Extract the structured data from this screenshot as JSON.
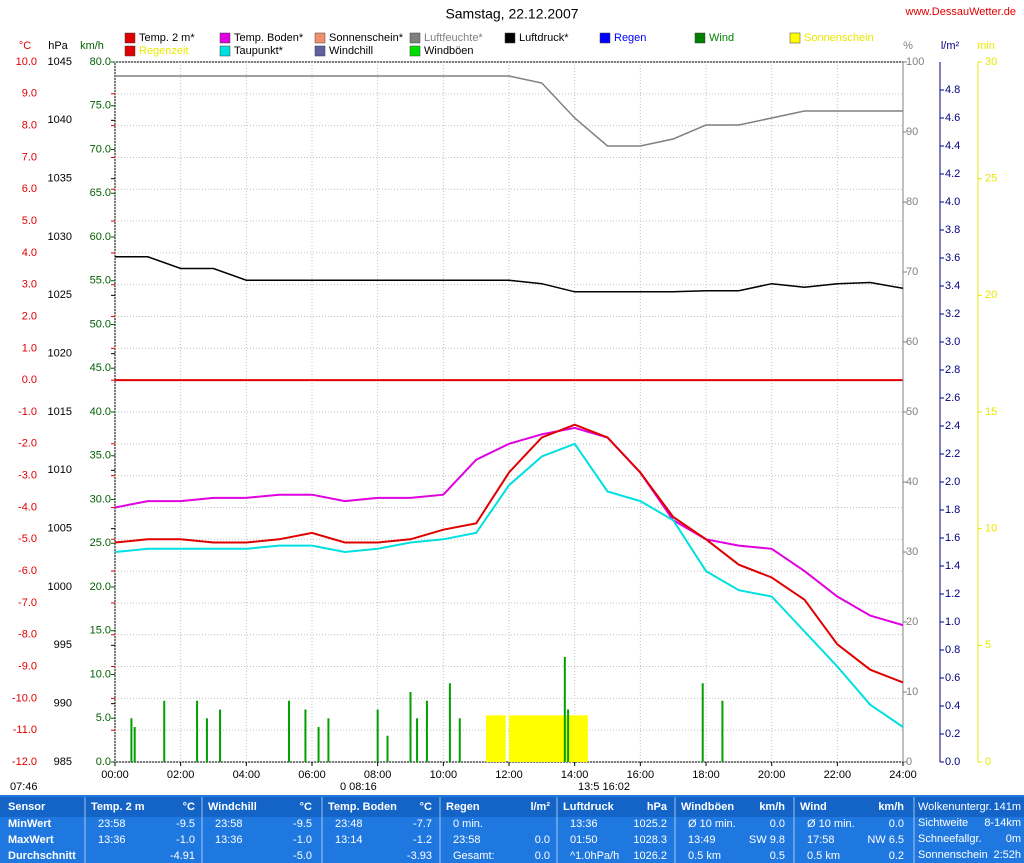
{
  "chart_data": {
    "type": "line",
    "title": "Samstag, 22.12.2007",
    "site": "www.DessauWetter.de",
    "legend": [
      {
        "name": "Temp. 2 m*",
        "color": "#e00000"
      },
      {
        "name": "Temp. Boden*",
        "color": "#e000e0"
      },
      {
        "name": "Sonnenschein*",
        "color": "#f0906a"
      },
      {
        "name": "Luftfeuchte*",
        "color": "#808080",
        "label_color": "#808080"
      },
      {
        "name": "Luftdruck*",
        "color": "#000000"
      },
      {
        "name": "Regen",
        "color": "#0000ff",
        "label_color": "#0000ff"
      },
      {
        "name": "Wind",
        "color": "#008000",
        "label_color": "#008000"
      },
      {
        "name": "Sonnenschein",
        "color": "#ffff00",
        "label_color": "#e8e800"
      },
      {
        "name": "Regenzeit",
        "color": "#e00000",
        "label_color": "#e8e800"
      },
      {
        "name": "Taupunkt*",
        "color": "#00e0e0"
      },
      {
        "name": "Windchill",
        "color": "#6060a0"
      },
      {
        "name": "Windböen",
        "color": "#00e000"
      }
    ],
    "xlim": [
      0,
      24
    ],
    "xticks": [
      {
        "value": 0,
        "label": "00:00"
      },
      {
        "value": 2,
        "label": "02:00"
      },
      {
        "value": 4,
        "label": "04:00"
      },
      {
        "value": 6,
        "label": "06:00"
      },
      {
        "value": 8,
        "label": "08:00"
      },
      {
        "value": 10,
        "label": "10:00"
      },
      {
        "value": 12,
        "label": "12:00"
      },
      {
        "value": 14,
        "label": "14:00"
      },
      {
        "value": 16,
        "label": "16:00"
      },
      {
        "value": 18,
        "label": "18:00"
      },
      {
        "value": 20,
        "label": "20:00"
      },
      {
        "value": 22,
        "label": "22:00"
      },
      {
        "value": 24,
        "label": "24:00"
      }
    ],
    "grid": true,
    "axes": {
      "t": {
        "label": "°C",
        "color": "#e00000",
        "lim": [
          -12,
          10
        ],
        "ticks": [
          {
            "value": 10,
            "label": "10.0"
          },
          {
            "value": 9,
            "label": "9.0"
          },
          {
            "value": 8,
            "label": "8.0"
          },
          {
            "value": 7,
            "label": "7.0"
          },
          {
            "value": 6,
            "label": "6.0"
          },
          {
            "value": 5,
            "label": "5.0"
          },
          {
            "value": 4,
            "label": "4.0"
          },
          {
            "value": 3,
            "label": "3.0"
          },
          {
            "value": 2,
            "label": "2.0"
          },
          {
            "value": 1,
            "label": "1.0"
          },
          {
            "value": 0,
            "label": "0.0"
          },
          {
            "value": -1,
            "label": "-1.0"
          },
          {
            "value": -2,
            "label": "-2.0"
          },
          {
            "value": -3,
            "label": "-3.0"
          },
          {
            "value": -4,
            "label": "-4.0"
          },
          {
            "value": -5,
            "label": "-5.0"
          },
          {
            "value": -6,
            "label": "-6.0"
          },
          {
            "value": -7,
            "label": "-7.0"
          },
          {
            "value": -8,
            "label": "-8.0"
          },
          {
            "value": -9,
            "label": "-9.0"
          },
          {
            "value": -10,
            "label": "-10.0"
          },
          {
            "value": -11,
            "label": "-11.0"
          },
          {
            "value": -12,
            "label": "-12.0"
          }
        ]
      },
      "p": {
        "label": "hPa",
        "color": "#000000",
        "lim": [
          985,
          1045
        ],
        "ticks": [
          1045,
          1040,
          1035,
          1030,
          1025,
          1020,
          1015,
          1010,
          1005,
          1000,
          995,
          990,
          985
        ]
      },
      "w": {
        "label": "km/h",
        "color": "#006000",
        "lim": [
          0,
          80
        ],
        "ticks": [
          {
            "value": 80,
            "label": "80.0"
          },
          {
            "value": 75,
            "label": "75.0"
          },
          {
            "value": 70,
            "label": "70.0"
          },
          {
            "value": 65,
            "label": "65.0"
          },
          {
            "value": 60,
            "label": "60.0"
          },
          {
            "value": 55,
            "label": "55.0"
          },
          {
            "value": 50,
            "label": "50.0"
          },
          {
            "value": 45,
            "label": "45.0"
          },
          {
            "value": 40,
            "label": "40.0"
          },
          {
            "value": 35,
            "label": "35.0"
          },
          {
            "value": 30,
            "label": "30.0"
          },
          {
            "value": 25,
            "label": "25.0"
          },
          {
            "value": 20,
            "label": "20.0"
          },
          {
            "value": 15,
            "label": "15.0"
          },
          {
            "value": 10,
            "label": "10.0"
          },
          {
            "value": 5,
            "label": "5.0"
          },
          {
            "value": 0,
            "label": "0.0"
          }
        ]
      },
      "h": {
        "label": "%",
        "color": "#808080",
        "lim": [
          0,
          100
        ],
        "ticks": [
          100,
          90,
          80,
          70,
          60,
          50,
          40,
          30,
          20,
          10,
          0
        ]
      },
      "r": {
        "label": "l/m²",
        "color": "#000080",
        "lim": [
          0,
          5
        ],
        "ticks": [
          4.8,
          4.6,
          4.4,
          4.2,
          {
            "value": 4,
            "label": "4.0"
          },
          3.8,
          3.6,
          3.4,
          3.2,
          {
            "value": 3,
            "label": "3.0"
          },
          2.8,
          2.6,
          2.4,
          2.2,
          {
            "value": 2,
            "label": "2.0"
          },
          1.8,
          1.6,
          1.4,
          1.2,
          {
            "value": 1,
            "label": "1.0"
          },
          0.8,
          0.6,
          0.4,
          0.2,
          {
            "value": 0,
            "label": "0.0"
          }
        ]
      },
      "m": {
        "label": "min",
        "color": "#e8e800",
        "lim": [
          0,
          30
        ],
        "ticks": [
          30,
          25,
          20,
          15,
          10,
          5,
          0
        ]
      }
    },
    "x": [
      0,
      1,
      2,
      3,
      4,
      5,
      6,
      7,
      8,
      9,
      10,
      11,
      12,
      13,
      14,
      15,
      16,
      17,
      18,
      19,
      20,
      21,
      22,
      23,
      24
    ],
    "series": [
      {
        "name": "Luftfeuchte*",
        "color": "#808080",
        "axis": "h",
        "values": [
          98,
          98,
          98,
          98,
          98,
          98,
          98,
          98,
          98,
          98,
          98,
          98,
          98,
          97,
          92,
          88,
          88,
          89,
          91,
          91,
          92,
          93,
          93,
          93,
          93
        ]
      },
      {
        "name": "Luftdruck*",
        "color": "#000000",
        "axis": "p",
        "values": [
          1028.3,
          1028.3,
          1027.3,
          1027.3,
          1026.3,
          1026.3,
          1026.3,
          1026.3,
          1026.3,
          1026.3,
          1026.3,
          1026.3,
          1026.3,
          1026.0,
          1025.3,
          1025.3,
          1025.3,
          1025.3,
          1025.4,
          1025.4,
          1026.0,
          1025.7,
          1026.0,
          1026.1,
          1025.6
        ]
      },
      {
        "name": "Temp. Boden*",
        "color": "#e000e0",
        "axis": "t",
        "values": [
          -4.0,
          -3.8,
          -3.8,
          -3.7,
          -3.7,
          -3.6,
          -3.6,
          -3.8,
          -3.7,
          -3.7,
          -3.6,
          -2.5,
          -2.0,
          -1.7,
          -1.5,
          -1.8,
          -2.9,
          -4.4,
          -5.0,
          -5.2,
          -5.3,
          -6.0,
          -6.8,
          -7.4,
          -7.7
        ]
      },
      {
        "name": "Taupunkt*",
        "color": "#00e0e0",
        "axis": "t",
        "values": [
          -5.4,
          -5.3,
          -5.3,
          -5.3,
          -5.3,
          -5.2,
          -5.2,
          -5.4,
          -5.3,
          -5.1,
          -5.0,
          -4.8,
          -3.3,
          -2.4,
          -2.0,
          -3.5,
          -3.8,
          -4.4,
          -6.0,
          -6.6,
          -6.8,
          -7.9,
          -9.0,
          -10.2,
          -10.9
        ]
      },
      {
        "name": "Temp. 2 m*",
        "color": "#e00000",
        "axis": "t",
        "values": [
          -5.1,
          -5.0,
          -5.0,
          -5.1,
          -5.1,
          -5.0,
          -4.8,
          -5.1,
          -5.1,
          -5.0,
          -4.7,
          -4.5,
          -2.9,
          -1.8,
          -1.4,
          -1.8,
          -2.9,
          -4.3,
          -5.0,
          -5.8,
          -6.2,
          -6.9,
          -8.3,
          -9.1,
          -9.5
        ]
      }
    ],
    "sunshine": {
      "name": "Sonnenschein",
      "color": "#ffff00",
      "axis": "m",
      "x0": [
        11.3,
        12.0
      ],
      "x1": [
        11.9,
        14.4
      ],
      "values": [
        2,
        2
      ]
    },
    "wind": {
      "name": "Wind",
      "color": "#00a000",
      "axis": "w",
      "x": [
        0.5,
        0.6,
        1.5,
        2.5,
        2.8,
        3.2,
        5.3,
        5.8,
        6.2,
        6.5,
        8.0,
        8.3,
        9.0,
        9.2,
        9.5,
        10.2,
        10.5,
        13.7,
        13.8,
        17.9,
        18.5
      ],
      "values": [
        5,
        4,
        7,
        7,
        5,
        6,
        7,
        6,
        4,
        5,
        6,
        3,
        8,
        5,
        7,
        9,
        5,
        12,
        6,
        9,
        7
      ]
    },
    "sun_times": [
      "07:46",
      "0 08:16",
      "13:5 16:02"
    ],
    "table": {
      "sensor": {
        "title": "Sensor",
        "rows": [
          "MinWert",
          "MaxWert",
          "Durchschnitt"
        ]
      },
      "columns": [
        {
          "title": "Temp. 2 m",
          "unit": "°C",
          "rows": [
            {
              "time": "23:58",
              "value": "-9.5"
            },
            {
              "time": "13:36",
              "value": "-1.0"
            },
            {
              "value": "-4.91"
            }
          ]
        },
        {
          "title": "Windchill",
          "unit": "°C",
          "rows": [
            {
              "time": "23:58",
              "value": "-9.5"
            },
            {
              "time": "13:36",
              "value": "-1.0"
            },
            {
              "value": "-5.0"
            }
          ]
        },
        {
          "title": "Temp. Boden",
          "unit": "°C",
          "rows": [
            {
              "time": "23:48",
              "value": "-7.7"
            },
            {
              "time": "13:14",
              "value": "-1.2"
            },
            {
              "value": "-3.93"
            }
          ]
        },
        {
          "title": "Regen",
          "unit": "l/m²",
          "rows": [
            {
              "time": "0 min."
            },
            {
              "time": "23:58",
              "value": "0.0"
            },
            {
              "time": "Gesamt:",
              "value": "0.0"
            }
          ]
        },
        {
          "title": "Luftdruck",
          "unit": "hPa",
          "rows": [
            {
              "time": "13:36",
              "value": "1025.2"
            },
            {
              "time": "01:50",
              "value": "1028.3"
            },
            {
              "time": "^1.0hPa/h",
              "value": "1026.2"
            }
          ]
        },
        {
          "title": "Windböen",
          "unit": "km/h",
          "rows": [
            {
              "time": "Ø 10 min.",
              "value": "0.0"
            },
            {
              "time": "13:49",
              "value": "SW 9.8"
            },
            {
              "time": "0.5 km",
              "value": "0.5"
            }
          ]
        },
        {
          "title": "Wind",
          "unit": "km/h",
          "rows": [
            {
              "time": "Ø 10 min.",
              "value": "0.0"
            },
            {
              "time": "17:58",
              "value": "NW 6.5"
            },
            {
              "time": "0.5 km",
              "value": "0.2"
            }
          ]
        }
      ],
      "info": [
        {
          "key": "Wolkenuntergr.",
          "value": "141m"
        },
        {
          "key": "Sichtweite",
          "value": "8-14km"
        },
        {
          "key": "Schneefallgr.",
          "value": "0m"
        },
        {
          "key": "Sonnenschein",
          "value": "2:52h"
        }
      ]
    }
  }
}
